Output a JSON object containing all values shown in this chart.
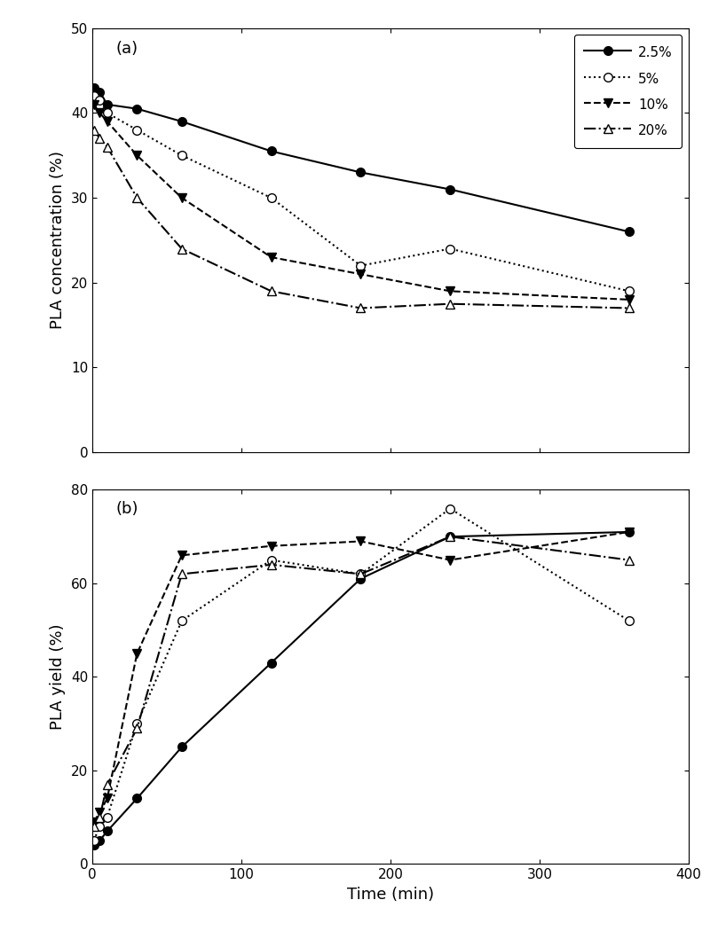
{
  "panel_a": {
    "label": "(a)",
    "ylabel": "PLA concentration (%)",
    "ylim": [
      0,
      50
    ],
    "yticks": [
      0,
      10,
      20,
      30,
      40,
      50
    ],
    "series": {
      "2.5%": {
        "x": [
          1,
          5,
          10,
          30,
          60,
          120,
          180,
          240,
          360
        ],
        "y": [
          43,
          42.5,
          41,
          40.5,
          39,
          35.5,
          33,
          31,
          26
        ],
        "marker": "o",
        "fillstyle": "full",
        "linestyle": "-",
        "linewidth": 1.5
      },
      "5%": {
        "x": [
          1,
          5,
          10,
          30,
          60,
          120,
          180,
          240,
          360
        ],
        "y": [
          42,
          41.5,
          40,
          38,
          35,
          30,
          22,
          24,
          19
        ],
        "marker": "o",
        "fillstyle": "none",
        "linestyle": ":",
        "linewidth": 1.5
      },
      "10%": {
        "x": [
          1,
          5,
          10,
          30,
          60,
          120,
          180,
          240,
          360
        ],
        "y": [
          41,
          40,
          39,
          35,
          30,
          23,
          21,
          19,
          18
        ],
        "marker": "v",
        "fillstyle": "full",
        "linestyle": "--",
        "linewidth": 1.5
      },
      "20%": {
        "x": [
          1,
          5,
          10,
          30,
          60,
          120,
          180,
          240,
          360
        ],
        "y": [
          38,
          37,
          36,
          30,
          24,
          19,
          17,
          17.5,
          17
        ],
        "marker": "^",
        "fillstyle": "none",
        "linestyle": "-.",
        "linewidth": 1.5
      }
    }
  },
  "panel_b": {
    "label": "(b)",
    "ylabel": "PLA yield (%)",
    "ylim": [
      0,
      80
    ],
    "yticks": [
      0,
      20,
      40,
      60,
      80
    ],
    "series": {
      "2.5%": {
        "x": [
          1,
          5,
          10,
          30,
          60,
          120,
          180,
          240,
          360
        ],
        "y": [
          4,
          5,
          7,
          14,
          25,
          43,
          61,
          70,
          71
        ],
        "marker": "o",
        "fillstyle": "full",
        "linestyle": "-",
        "linewidth": 1.5
      },
      "5%": {
        "x": [
          1,
          5,
          10,
          30,
          60,
          120,
          180,
          240,
          360
        ],
        "y": [
          5,
          8,
          10,
          30,
          52,
          65,
          62,
          76,
          52
        ],
        "marker": "o",
        "fillstyle": "none",
        "linestyle": ":",
        "linewidth": 1.5
      },
      "10%": {
        "x": [
          1,
          5,
          10,
          30,
          60,
          120,
          180,
          240,
          360
        ],
        "y": [
          9,
          11,
          14,
          45,
          66,
          68,
          69,
          65,
          71
        ],
        "marker": "v",
        "fillstyle": "full",
        "linestyle": "--",
        "linewidth": 1.5
      },
      "20%": {
        "x": [
          1,
          5,
          10,
          30,
          60,
          120,
          180,
          240,
          360
        ],
        "y": [
          8,
          10,
          17,
          29,
          62,
          64,
          62,
          70,
          65
        ],
        "marker": "^",
        "fillstyle": "none",
        "linestyle": "-.",
        "linewidth": 1.5
      }
    }
  },
  "xlabel": "Time (min)",
  "xlim": [
    0,
    400
  ],
  "xticks": [
    0,
    100,
    200,
    300,
    400
  ],
  "legend_labels": [
    "2.5%",
    "5%",
    "10%",
    "20%"
  ],
  "legend_linestyles": [
    "-",
    ":",
    "--",
    "-."
  ],
  "legend_markers": [
    "o",
    "o",
    "v",
    "^"
  ],
  "legend_fillstyles": [
    "full",
    "none",
    "full",
    "none"
  ],
  "marker_size": 7,
  "label_fontsize": 13,
  "tick_fontsize": 11,
  "legend_fontsize": 11
}
